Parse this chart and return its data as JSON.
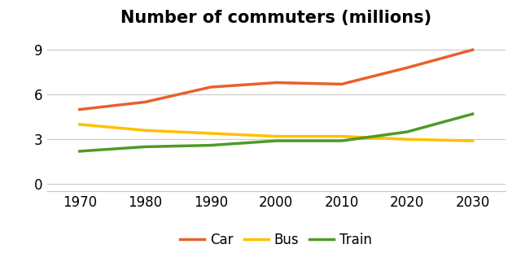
{
  "title": "Number of commuters (millions)",
  "years": [
    1970,
    1980,
    1990,
    2000,
    2010,
    2020,
    2030
  ],
  "car": [
    5.0,
    5.5,
    6.5,
    6.8,
    6.7,
    7.8,
    9.0
  ],
  "bus": [
    4.0,
    3.6,
    3.4,
    3.2,
    3.2,
    3.0,
    2.9
  ],
  "train": [
    2.2,
    2.5,
    2.6,
    2.9,
    2.9,
    3.5,
    4.7
  ],
  "car_color": "#E8602C",
  "bus_color": "#FFC000",
  "train_color": "#4E9A28",
  "line_width": 2.5,
  "ylim": [
    -0.5,
    10.2
  ],
  "yticks": [
    0,
    3,
    6,
    9
  ],
  "xticks": [
    1970,
    1980,
    1990,
    2000,
    2010,
    2020,
    2030
  ],
  "legend_labels": [
    "Car",
    "Bus",
    "Train"
  ],
  "title_fontsize": 15,
  "tick_fontsize": 12,
  "legend_fontsize": 12,
  "background_color": "#ffffff",
  "grid_color": "#c8c8c8"
}
